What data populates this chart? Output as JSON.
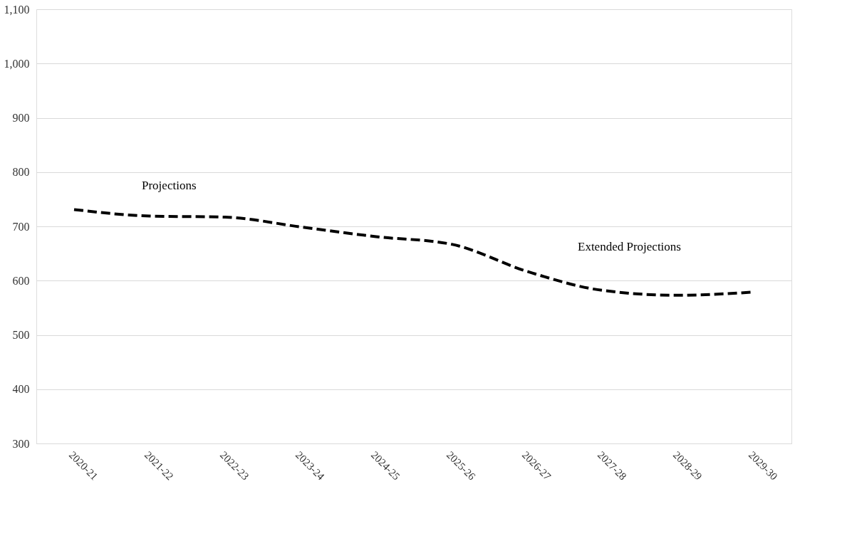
{
  "chart_data": {
    "type": "line",
    "categories": [
      "2020-21",
      "2021-22",
      "2022-23",
      "2023-24",
      "2024-25",
      "2025-26",
      "2026-27",
      "2027-28",
      "2028-29",
      "2029-30"
    ],
    "series": [
      {
        "color": "#000000",
        "values": [
          731,
          719,
          717,
          699,
          681,
          667,
          617,
          582,
          573,
          579
        ]
      }
    ],
    "ylim": [
      300,
      1100
    ],
    "yticks": [
      300,
      400,
      500,
      600,
      700,
      800,
      900,
      {
        "value": 1000,
        "label": "1,000"
      },
      {
        "value": 1100,
        "label": "1,100"
      }
    ],
    "grid": "y",
    "line_style": "dashed",
    "marker": "none",
    "legend": false,
    "annotations": [
      "Projections",
      "Extended Projections"
    ]
  }
}
